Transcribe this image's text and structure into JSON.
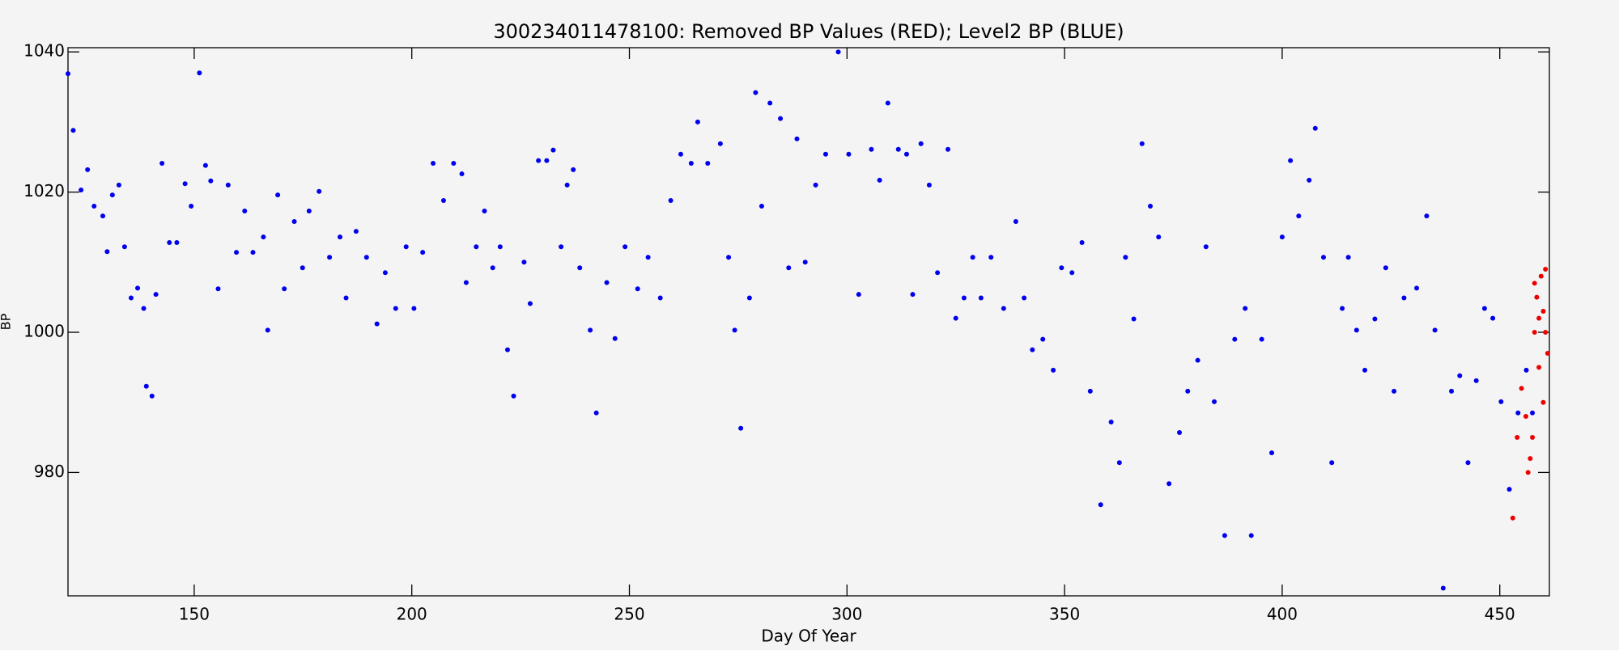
{
  "chart_data": {
    "type": "scatter",
    "title": "300234011478100: Removed BP Values (RED); Level2 BP (BLUE)",
    "x_label": "Day Of Year",
    "y_label": "BP",
    "xlim": [
      121,
      461.4
    ],
    "ylim": [
      962.4,
      1040.6
    ],
    "xticks": [
      150,
      200,
      250,
      300,
      350,
      400,
      450
    ],
    "yticks": [
      980,
      1000,
      1020,
      1040
    ],
    "series": [
      {
        "color": "#0000ee",
        "x": [
          121,
          122.2,
          124,
          125.5,
          127,
          129,
          130,
          131.2,
          132.7,
          134,
          135.5,
          137,
          138.4,
          139,
          140.3,
          141.2,
          142.6,
          144.3,
          146,
          147.9,
          149.3,
          151.2,
          152.6,
          153.8,
          155.5,
          157.8,
          159.7,
          161.6,
          163.5,
          165.9,
          166.9,
          169.2,
          170.7,
          173,
          174.9,
          176.4,
          178.7,
          181.1,
          183.5,
          184.9,
          187.2,
          189.6,
          192,
          193.9,
          196.3,
          198.7,
          200.5,
          202.5,
          204.9,
          207.3,
          209.6,
          211.5,
          212.5,
          214.8,
          216.7,
          218.6,
          220.3,
          222,
          223.4,
          225.8,
          227.2,
          229.1,
          231,
          232.5,
          234.3,
          235.7,
          237.1,
          238.6,
          241,
          242.4,
          244.8,
          246.7,
          249,
          251.9,
          254.3,
          257.1,
          259.5,
          261.8,
          264.2,
          265.7,
          268,
          270.9,
          272.8,
          274.2,
          275.6,
          277.6,
          279,
          280.4,
          282.3,
          284.7,
          286.6,
          288.5,
          290.4,
          292.8,
          295.1,
          298,
          300.4,
          302.7,
          305.6,
          307.5,
          309.4,
          311.8,
          313.7,
          315.1,
          317,
          318.9,
          320.8,
          323.2,
          325,
          326.9,
          328.9,
          330.8,
          333.1,
          336,
          338.8,
          340.7,
          342.6,
          345,
          347.4,
          349.3,
          351.7,
          354,
          355.9,
          358.3,
          360.7,
          362.6,
          364,
          365.9,
          367.8,
          369.7,
          371.6,
          374,
          376.4,
          378.3,
          380.6,
          382.5,
          384.4,
          386.8,
          389.1,
          391.5,
          392.9,
          395.3,
          397.6,
          400,
          401.9,
          403.8,
          406.2,
          407.6,
          409.5,
          411.4,
          413.8,
          415.2,
          417.1,
          419,
          421.3,
          423.8,
          425.7,
          428,
          430.9,
          433.2,
          435.1,
          437,
          438.9,
          440.8,
          442.7,
          444.6,
          446.5,
          448.4,
          450.3,
          452.2,
          454.2,
          456.1,
          457.5
        ],
        "values": [
          1036.9,
          1028.8,
          1020.3,
          1023.2,
          1018,
          1016.6,
          1011.5,
          1019.6,
          1021,
          1012.2,
          1004.9,
          1006.3,
          1003.4,
          992.3,
          990.9,
          1005.4,
          1024.1,
          1012.8,
          1012.8,
          1021.2,
          1018,
          1037,
          1023.8,
          1021.6,
          1006.2,
          1021,
          1011.4,
          1017.3,
          1011.4,
          1013.6,
          1000.3,
          1019.6,
          1006.2,
          1015.8,
          1009.2,
          1017.3,
          1020.1,
          1010.7,
          1013.6,
          1004.9,
          1014.4,
          1010.7,
          1001.2,
          1008.5,
          1003.4,
          1012.2,
          1003.4,
          1011.4,
          1024.1,
          1018.8,
          1024.1,
          1022.6,
          1007.1,
          1012.2,
          1017.3,
          1009.2,
          1012.2,
          997.5,
          990.9,
          1010,
          1004.1,
          1024.5,
          1024.5,
          1026,
          1012.2,
          1021,
          1023.2,
          1009.2,
          1000.3,
          988.5,
          1007.1,
          999.1,
          1012.2,
          1006.2,
          1010.7,
          1004.9,
          1018.8,
          1025.4,
          1024.1,
          1030,
          1024.1,
          1026.9,
          1010.7,
          1000.3,
          986.3,
          1004.9,
          1034.2,
          1018,
          1032.7,
          1030.5,
          1009.2,
          1027.6,
          1010,
          1021,
          1025.4,
          1040,
          1025.4,
          1005.4,
          1026.1,
          1021.7,
          1032.7,
          1026.1,
          1025.4,
          1005.4,
          1026.9,
          1021,
          1008.5,
          1026.1,
          1002,
          1004.9,
          1010.7,
          1004.9,
          1010.7,
          1003.4,
          1015.8,
          1004.9,
          997.5,
          999,
          994.6,
          1009.2,
          1008.5,
          1012.8,
          991.6,
          975.4,
          987.2,
          981.4,
          1010.7,
          1001.9,
          1026.9,
          1018,
          1013.6,
          978.4,
          985.7,
          991.6,
          996,
          1012.2,
          990.1,
          971,
          999,
          1003.4,
          971,
          999,
          982.8,
          1013.6,
          1024.5,
          1016.6,
          1021.7,
          1029.1,
          1010.7,
          981.4,
          1003.4,
          1010.7,
          1000.3,
          994.6,
          1001.9,
          1009.2,
          991.6,
          1004.9,
          1006.3,
          1016.6,
          1000.3,
          963.5,
          991.6,
          993.8,
          981.4,
          993.1,
          1003.4,
          1002,
          990.1,
          977.6,
          988.5,
          994.6,
          988.5
        ]
      },
      {
        "color": "#ee0000",
        "x": [
          453,
          454,
          455,
          456,
          456.5,
          457,
          457.5,
          458,
          458,
          458.5,
          459,
          459,
          459.5,
          460,
          460,
          460.5,
          460.5,
          461
        ],
        "values": [
          973.5,
          985,
          992,
          988,
          980,
          982,
          985,
          1000,
          1007,
          1005,
          995,
          1002,
          1008,
          1003,
          990,
          1009,
          1000,
          997
        ]
      }
    ]
  }
}
